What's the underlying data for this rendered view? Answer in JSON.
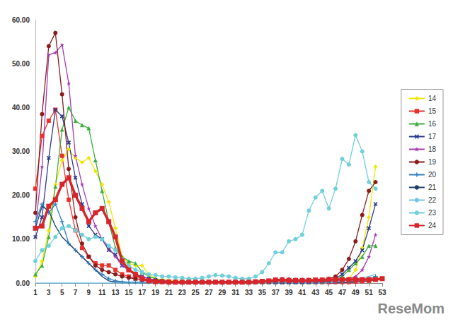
{
  "chart_data": {
    "type": "line",
    "x": [
      1,
      2,
      3,
      4,
      5,
      6,
      7,
      8,
      9,
      10,
      11,
      12,
      13,
      14,
      15,
      16,
      17,
      18,
      19,
      20,
      21,
      22,
      23,
      24,
      25,
      26,
      27,
      28,
      29,
      30,
      31,
      32,
      33,
      34,
      35,
      36,
      37,
      38,
      39,
      40,
      41,
      42,
      43,
      44,
      45,
      46,
      47,
      48,
      49,
      50,
      51,
      52,
      53
    ],
    "xlim": [
      1,
      53
    ],
    "xticks": [
      1,
      3,
      5,
      7,
      9,
      11,
      13,
      15,
      17,
      19,
      21,
      23,
      25,
      27,
      29,
      31,
      33,
      35,
      37,
      39,
      41,
      43,
      45,
      47,
      49,
      51,
      53
    ],
    "ylim": [
      0,
      60
    ],
    "yticks": [
      {
        "value": 0,
        "label": "0.00"
      },
      {
        "value": 10,
        "label": "10.00"
      },
      {
        "value": 20,
        "label": "20.00"
      },
      {
        "value": 30,
        "label": "30.00"
      },
      {
        "value": 40,
        "label": "40.00"
      },
      {
        "value": 50,
        "label": "50.00"
      },
      {
        "value": 60,
        "label": "60.00"
      }
    ],
    "grid": false,
    "legend": "right",
    "annotations": [
      "ReseMom"
    ],
    "series": [
      {
        "name": "14",
        "color": "#f2e600",
        "marker": "diamond",
        "line_style": "solid",
        "values": [
          1.5,
          5,
          12,
          22.5,
          28,
          30.5,
          28.5,
          27.5,
          28.5,
          25.5,
          22.5,
          18.5,
          12.5,
          6,
          4.5,
          4,
          4,
          2,
          1,
          0.8,
          0.6,
          0.5,
          0.4,
          0.3,
          0.3,
          0.3,
          0.3,
          0.3,
          0.3,
          0.3,
          0.3,
          0.3,
          0.3,
          0.3,
          0.3,
          0.3,
          0.3,
          0.3,
          0.3,
          0.3,
          0.3,
          0.3,
          0.4,
          0.4,
          0.5,
          0.6,
          0.8,
          1,
          3,
          8,
          15,
          26.5,
          null
        ]
      },
      {
        "name": "15",
        "color": "#e8322b",
        "marker": "square",
        "line_style": "solid",
        "values": [
          21.5,
          33.5,
          37,
          39.5,
          29,
          19,
          12,
          8,
          6,
          4.5,
          4,
          4,
          3,
          2,
          1.5,
          1,
          0.8,
          0.6,
          0.5,
          0.4,
          0.3,
          0.2,
          0.2,
          0.2,
          0.2,
          0.2,
          0.2,
          0.2,
          0.2,
          0.2,
          0.2,
          0.2,
          0.2,
          0.2,
          0.2,
          0.2,
          0.2,
          0.2,
          0.2,
          0.2,
          0.2,
          0.2,
          0.2,
          0.2,
          0.2,
          0.2,
          0.2,
          0.2,
          0.3,
          0.4,
          0.5,
          0.8,
          1
        ]
      },
      {
        "name": "16",
        "color": "#3cae3c",
        "marker": "triangle",
        "line_style": "solid",
        "values": [
          2,
          4,
          10.5,
          22,
          35,
          40,
          37,
          36,
          35.3,
          28,
          21,
          14,
          8,
          6,
          5,
          4.5,
          2.5,
          1.5,
          1,
          0.6,
          0.4,
          0.3,
          0.2,
          0.2,
          0.2,
          0.2,
          0.2,
          0.2,
          0.2,
          0.2,
          0.2,
          0.2,
          0.2,
          0.2,
          0.2,
          0.2,
          0.2,
          0.2,
          0.2,
          0.2,
          0.2,
          0.2,
          0.3,
          0.4,
          0.5,
          0.8,
          1.5,
          3,
          4.5,
          6,
          8.5,
          8.5,
          null
        ]
      },
      {
        "name": "17",
        "color": "#2b3a8c",
        "marker": "x",
        "line_style": "solid",
        "values": [
          10.5,
          15,
          28.5,
          39.5,
          38,
          32,
          24,
          18,
          13,
          11,
          10,
          7.5,
          6.5,
          4,
          3,
          2,
          1.5,
          1,
          0.7,
          0.5,
          0.4,
          0.3,
          0.2,
          0.2,
          0.2,
          0.2,
          0.2,
          0.2,
          0.2,
          0.2,
          0.2,
          0.2,
          0.2,
          0.2,
          0.2,
          0.2,
          0.2,
          0.2,
          0.2,
          0.2,
          0.2,
          0.3,
          0.3,
          0.4,
          0.6,
          1,
          2,
          3.5,
          5,
          7.5,
          12.5,
          18,
          null
        ]
      },
      {
        "name": "18",
        "color": "#a33ab0",
        "marker": "star",
        "line_style": "solid",
        "values": [
          12.5,
          26.5,
          52,
          52.5,
          54.3,
          45.5,
          29,
          22.5,
          17,
          13,
          10,
          8,
          6,
          4,
          3,
          2,
          1.5,
          1,
          0.6,
          0.4,
          0.3,
          0.2,
          0.2,
          0.2,
          0.2,
          0.2,
          0.2,
          0.2,
          0.2,
          0.2,
          0.2,
          0.2,
          0.2,
          0.2,
          0.2,
          0.2,
          0.2,
          0.2,
          0.2,
          0.2,
          0.2,
          0.2,
          0.2,
          0.3,
          0.3,
          0.4,
          0.6,
          1,
          1.5,
          3,
          6,
          11,
          null
        ]
      },
      {
        "name": "19",
        "color": "#8b1c1c",
        "marker": "circle",
        "line_style": "solid",
        "values": [
          16,
          38.5,
          54,
          57,
          43,
          26,
          15,
          9,
          6,
          4,
          3,
          2.5,
          2,
          1.5,
          1.2,
          1,
          0.8,
          0.6,
          0.5,
          0.4,
          0.3,
          0.3,
          0.2,
          0.2,
          0.2,
          0.2,
          0.2,
          0.2,
          0.2,
          0.2,
          0.2,
          0.2,
          0.3,
          0.3,
          0.4,
          0.5,
          0.8,
          0.9,
          0.8,
          0.7,
          0.7,
          0.7,
          0.7,
          0.8,
          1,
          1.5,
          3,
          5.5,
          9.5,
          15.5,
          21,
          23,
          null
        ]
      },
      {
        "name": "20",
        "color": "#2f7fbf",
        "marker": "plus",
        "line_style": "solid",
        "values": [
          14,
          18,
          16,
          18,
          14,
          9,
          7.5,
          6,
          4.5,
          3,
          2,
          1,
          0.5,
          0.3,
          0.2,
          0.2,
          0.2,
          0.2,
          0.2,
          0.2,
          0.2,
          0.2,
          0.2,
          0.2,
          0.2,
          0.2,
          0.2,
          0.2,
          0.2,
          0.2,
          0.2,
          0.2,
          0.2,
          0.2,
          0.2,
          0.2,
          0.2,
          0.2,
          0.2,
          0.2,
          0.2,
          0.2,
          0.2,
          0.2,
          0.2,
          0.2,
          0.2,
          0.3,
          0.5,
          0.8,
          1,
          1.5,
          null
        ]
      },
      {
        "name": "21",
        "color": "#1e3f66",
        "marker": "none",
        "line_style": "solid",
        "values": [
          12.5,
          17.5,
          16.5,
          13,
          10.5,
          9,
          7.5,
          6,
          4.5,
          3,
          1.5,
          0.5,
          0.2,
          0.1,
          0,
          0,
          0,
          0,
          0,
          0,
          0,
          0,
          0,
          0,
          0,
          0,
          0,
          0,
          0,
          0,
          0,
          0,
          0,
          0,
          0,
          0,
          0,
          0,
          0,
          0,
          0,
          0,
          0,
          0,
          0,
          0,
          0.1,
          0.1,
          0.2,
          0.3,
          0.5,
          0.8,
          null
        ]
      },
      {
        "name": "22",
        "color": "#74c7e8",
        "marker": "none",
        "line_style": "solid",
        "values": [
          0,
          0,
          0,
          0,
          0,
          0,
          0,
          0,
          0,
          0,
          0,
          0,
          0,
          0,
          0,
          0,
          0,
          0,
          0,
          0,
          0,
          0,
          0,
          0,
          0,
          0,
          0,
          0,
          0,
          0,
          0,
          0,
          0,
          0,
          0,
          0,
          0,
          0,
          0,
          0,
          0,
          0,
          0,
          0,
          0,
          0.3,
          0.5,
          0.8,
          1,
          1.2,
          1.5,
          2,
          null
        ]
      },
      {
        "name": "23",
        "color": "#6fd0dc",
        "marker": "circle",
        "line_style": "solid",
        "values": [
          5,
          7.5,
          8.5,
          10.5,
          12.5,
          13,
          12,
          11,
          10,
          10.5,
          10,
          8.5,
          7.5,
          5.5,
          4,
          3,
          2.5,
          2,
          1.8,
          1.5,
          1.5,
          1.3,
          1.2,
          1,
          1,
          1.2,
          1.5,
          1.8,
          1.7,
          1.5,
          1.2,
          1,
          1,
          1.5,
          2.5,
          4.5,
          7,
          7,
          9.5,
          10,
          11,
          16.5,
          19.5,
          21,
          17,
          21.5,
          28.3,
          27,
          33.7,
          30,
          23,
          21.5,
          null
        ]
      },
      {
        "name": "24",
        "color": "#d7262b",
        "marker": "square",
        "line_style": "thick",
        "values": [
          12.5,
          13,
          17.5,
          19,
          22.5,
          24,
          20,
          17,
          14,
          16,
          17,
          14,
          10.5,
          5,
          3,
          2,
          1,
          0.5,
          0.3,
          0.3,
          0.2,
          0.2,
          0.2,
          0.2,
          0.2,
          0.2,
          0.2,
          0.2,
          0.2,
          0.2,
          0.2,
          0.2,
          0.2,
          0.3,
          0.4,
          0.5,
          0.7,
          0.7,
          0.6,
          0.6,
          0.6,
          0.6,
          0.7,
          0.7,
          0.8,
          0.8,
          0.8,
          0.8,
          0.8,
          0.8,
          0.8,
          0.8,
          1
        ]
      }
    ]
  }
}
